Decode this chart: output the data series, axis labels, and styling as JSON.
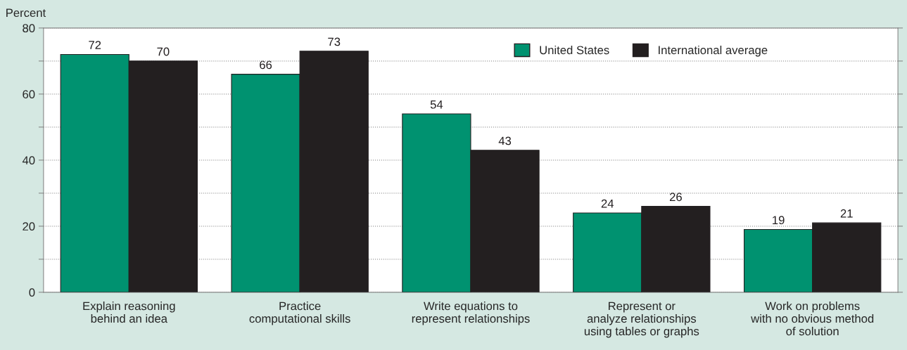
{
  "chart_data": {
    "type": "bar",
    "ylabel": "Percent",
    "categories": [
      "Explain reasoning\nbehind an idea",
      "Practice\ncomputational skills",
      "Write equations to\nrepresent relationships",
      "Represent or\nanalyze relationships\nusing tables or graphs",
      "Work on problems\nwith no obvious method\nof solution"
    ],
    "series": [
      {
        "name": "United States",
        "color": "#009270",
        "values": [
          72,
          66,
          54,
          24,
          19
        ]
      },
      {
        "name": "International average",
        "color": "#231f20",
        "values": [
          70,
          73,
          43,
          26,
          21
        ]
      }
    ],
    "ylim": [
      0,
      80
    ],
    "yticks": [
      0,
      {
        "value": 10,
        "label": null
      },
      20,
      {
        "value": 30,
        "label": null
      },
      40,
      {
        "value": 50,
        "label": null
      },
      60,
      {
        "value": 70,
        "label": null
      },
      80
    ],
    "grid": "y",
    "legend": "top right",
    "data_labels": true
  }
}
